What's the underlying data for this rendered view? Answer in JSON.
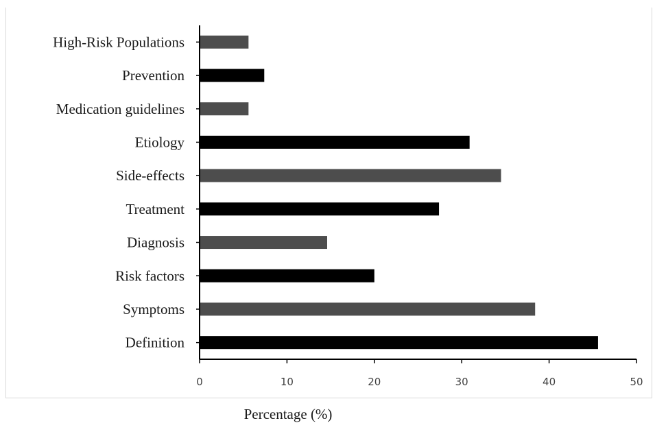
{
  "chart_data": {
    "type": "bar",
    "orientation": "horizontal",
    "categories": [
      "Definition",
      "Symptoms",
      "Risk factors",
      "Diagnosis",
      "Treatment",
      "Side-effects",
      "Etiology",
      "Medication guidelines",
      "Prevention",
      "High-Risk Populations"
    ],
    "values": [
      45.6,
      38.4,
      20.0,
      14.6,
      27.4,
      34.5,
      30.9,
      5.6,
      7.4,
      5.6
    ],
    "bar_colors": [
      "#000000",
      "#4d4d4d",
      "#000000",
      "#4d4d4d",
      "#000000",
      "#4d4d4d",
      "#000000",
      "#4d4d4d",
      "#000000",
      "#4d4d4d"
    ],
    "xlabel": "Percentage (%)",
    "xlim": [
      0,
      50
    ],
    "xticks": [
      0,
      10,
      20,
      30,
      40,
      50
    ],
    "grid": false
  }
}
